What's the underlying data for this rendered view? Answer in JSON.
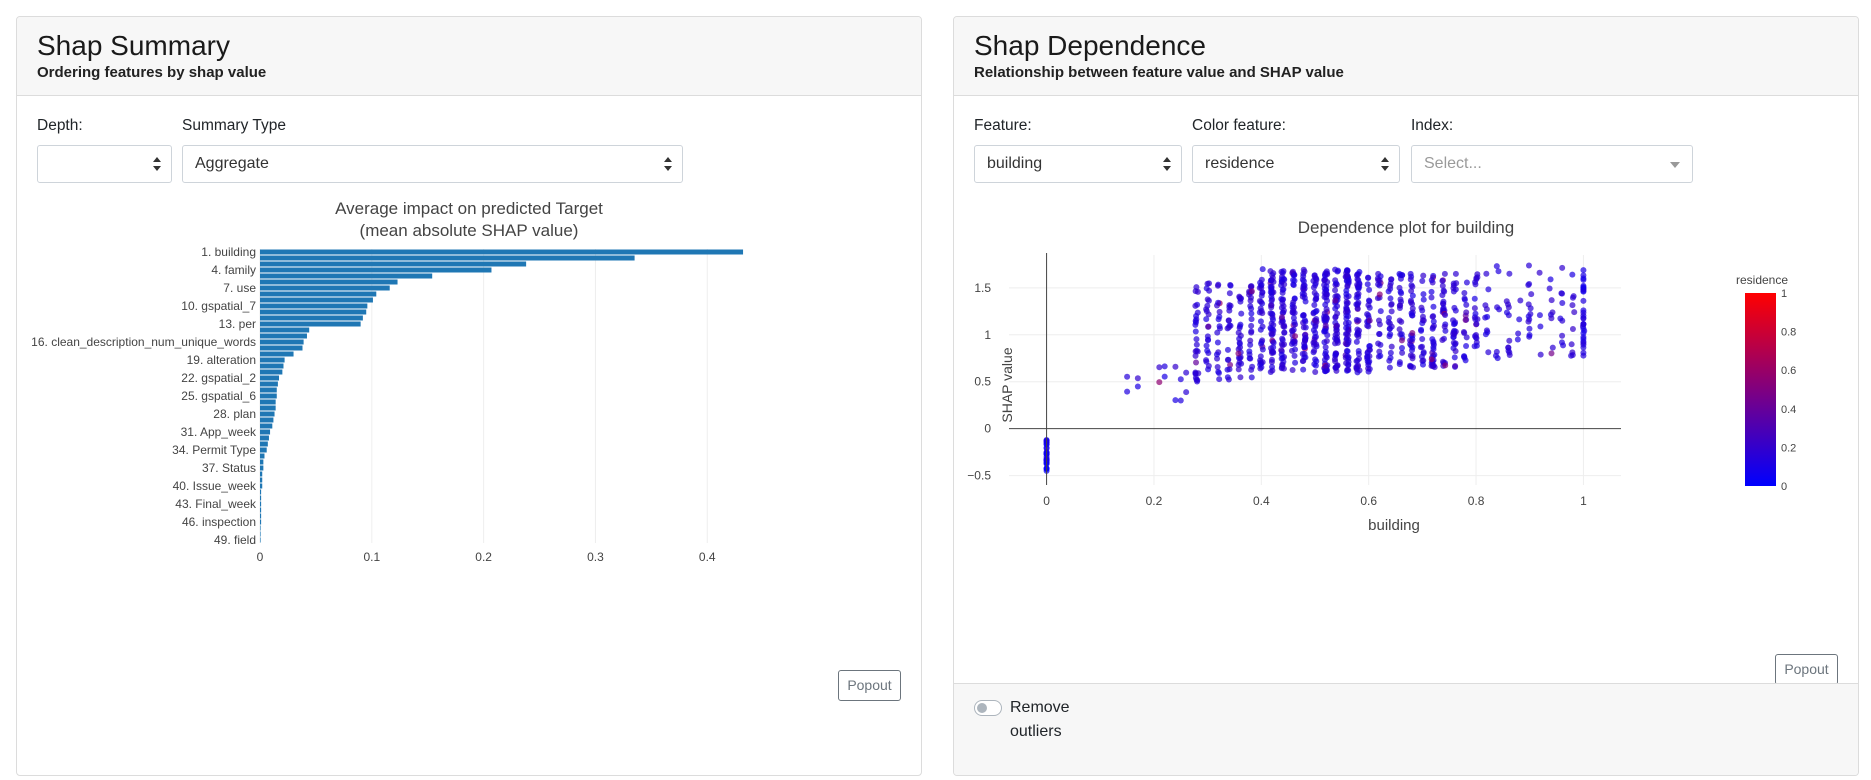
{
  "summary": {
    "title": "Shap Summary",
    "subtitle": "Ordering features by shap value",
    "depth_label": "Depth:",
    "depth_value": "",
    "summary_type_label": "Summary Type",
    "summary_type_value": "Aggregate",
    "popout_label": "Popout"
  },
  "dependence": {
    "title": "Shap Dependence",
    "subtitle": "Relationship between feature value and SHAP value",
    "feature_label": "Feature:",
    "feature_value": "building",
    "color_feature_label": "Color feature:",
    "color_feature_value": "residence",
    "index_label": "Index:",
    "index_placeholder": "Select...",
    "popout_label": "Popout",
    "remove_outliers_label": "Remove outliers"
  },
  "colors": {
    "bar": "#1f77b4",
    "scale_low": "#0000ff",
    "scale_high": "#ff0000"
  },
  "chart_data": [
    {
      "type": "bar",
      "orientation": "horizontal",
      "title": "Average impact on predicted Target",
      "subtitle": "(mean absolute SHAP value)",
      "tick_labels": [
        "1. building",
        "4. family",
        "7. use",
        "10. gspatial_7",
        "13. per",
        "16. clean_description_num_unique_words",
        "19. alteration",
        "22. gspatial_2",
        "25. gspatial_6",
        "28. plan",
        "31. App_week",
        "34. Permit Type",
        "37. Status",
        "40. Issue_week",
        "43. Final_week",
        "46. inspection",
        "49. field"
      ],
      "values": [
        0.432,
        0.335,
        0.238,
        0.207,
        0.154,
        0.123,
        0.116,
        0.104,
        0.101,
        0.096,
        0.095,
        0.092,
        0.09,
        0.044,
        0.042,
        0.039,
        0.038,
        0.03,
        0.022,
        0.021,
        0.02,
        0.017,
        0.016,
        0.015,
        0.015,
        0.014,
        0.014,
        0.013,
        0.012,
        0.011,
        0.009,
        0.008,
        0.007,
        0.006,
        0.004,
        0.003,
        0.003,
        0.002,
        0.002,
        0.002,
        0.001,
        0.001,
        0.001,
        0.001,
        0.001,
        0.001,
        0.0005,
        0.0005,
        0.0005
      ],
      "xticks": [
        0,
        0.1,
        0.2,
        0.3,
        0.4
      ],
      "xlim": [
        0,
        0.44
      ]
    },
    {
      "type": "scatter",
      "title": "Dependence plot for building",
      "xlabel": "building",
      "ylabel": "SHAP value",
      "xticks": [
        0,
        0.2,
        0.4,
        0.6,
        0.8,
        1
      ],
      "yticks": [
        -0.5,
        0,
        0.5,
        1,
        1.5
      ],
      "xlim": [
        -0.07,
        1.07
      ],
      "ylim": [
        -0.6,
        1.85
      ],
      "colorbar": {
        "title": "residence",
        "ticks": [
          0,
          0.2,
          0.4,
          0.6,
          0.8,
          1
        ],
        "range": [
          0,
          1
        ]
      },
      "point_groups": [
        {
          "x": [
            0
          ],
          "y_range": [
            -0.45,
            -0.1
          ],
          "count": 30,
          "color_value": 0
        },
        {
          "x": [
            0.15,
            0.17,
            0.21,
            0.22,
            0.24,
            0.25,
            0.26
          ],
          "y_range": [
            0.3,
            0.7
          ],
          "count": 14,
          "color_value": 0.1
        },
        {
          "x_range": [
            0.27,
            0.4
          ],
          "y_range": [
            0.5,
            1.55
          ],
          "count": 150,
          "color_value": 0.1
        },
        {
          "x_range": [
            0.4,
            0.6
          ],
          "y_range": [
            0.6,
            1.7
          ],
          "count": 500,
          "color_value": 0.1
        },
        {
          "x_range": [
            0.6,
            0.8
          ],
          "y_range": [
            0.65,
            1.65
          ],
          "count": 260,
          "color_value": 0.1
        },
        {
          "x_range": [
            0.8,
            1.0
          ],
          "y_range": [
            0.75,
            1.75
          ],
          "count": 80,
          "color_value": 0.1
        },
        {
          "x": [
            1.0
          ],
          "y_range": [
            0.75,
            1.7
          ],
          "count": 30,
          "color_value": 0.05
        }
      ]
    }
  ]
}
